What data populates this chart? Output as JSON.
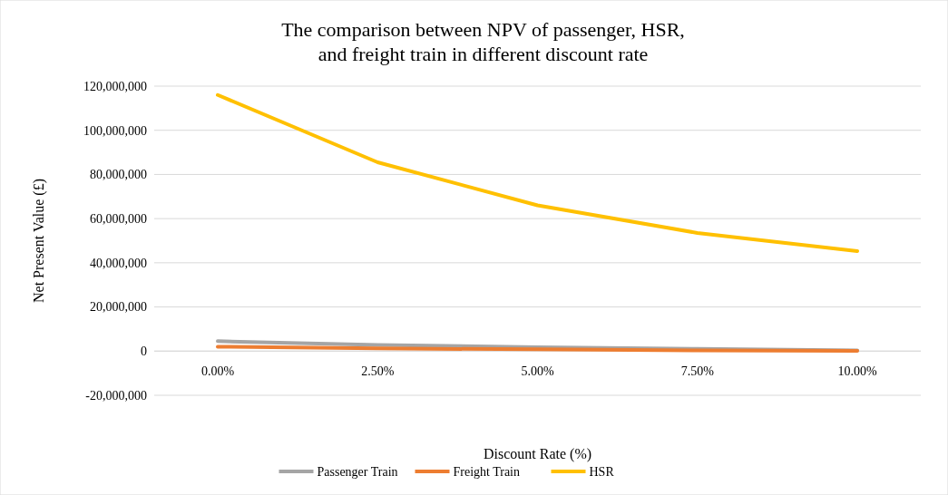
{
  "chart_data": {
    "type": "line",
    "title": "The comparison between NPV of passenger, HSR,\nand freight train in different discount rate",
    "xlabel": "Discount Rate (%)",
    "ylabel": "Net Present Value (£)",
    "categories": [
      "0.00%",
      "2.50%",
      "5.00%",
      "7.50%",
      "10.00%"
    ],
    "series": [
      {
        "name": "Passenger Train",
        "color": "#a5a5a5",
        "values": [
          4500000,
          2800000,
          1800000,
          1000000,
          300000
        ]
      },
      {
        "name": "Freight Train",
        "color": "#ed7d31",
        "values": [
          2000000,
          1200000,
          800000,
          300000,
          100000
        ]
      },
      {
        "name": "HSR",
        "color": "#ffc000",
        "values": [
          116000000,
          85500000,
          66000000,
          53500000,
          45300000
        ]
      }
    ],
    "ylim": [
      -20000000,
      120000000
    ],
    "yticks": [
      {
        "value": -20000000,
        "label": "-20,000,000"
      },
      {
        "value": 0,
        "label": "0"
      },
      {
        "value": 20000000,
        "label": "20,000,000"
      },
      {
        "value": 40000000,
        "label": "40,000,000"
      },
      {
        "value": 60000000,
        "label": "60,000,000"
      },
      {
        "value": 80000000,
        "label": "80,000,000"
      },
      {
        "value": 100000000,
        "label": "100,000,000"
      },
      {
        "value": 120000000,
        "label": "120,000,000"
      }
    ],
    "grid": "y",
    "legend": "bottom",
    "marker": "none",
    "line_style": "solid"
  }
}
